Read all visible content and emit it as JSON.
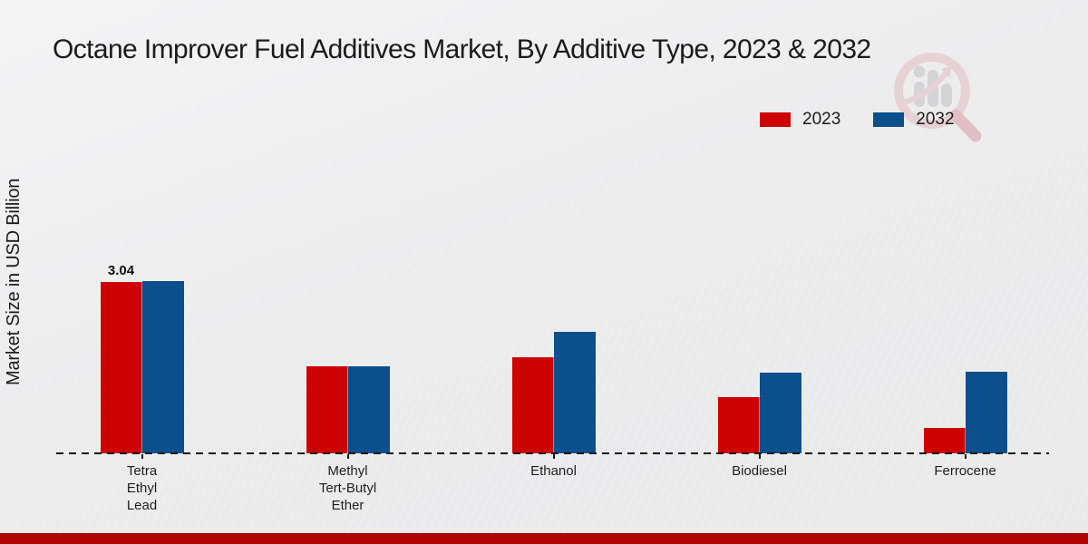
{
  "page": {
    "title": "Octane Improver Fuel Additives Market, By Additive Type, 2023 & 2032"
  },
  "legend": {
    "items": [
      {
        "label": "2023",
        "color": "#cc0302"
      },
      {
        "label": "2032",
        "color": "#0b4f8c"
      }
    ]
  },
  "watermark": {
    "icon": "market-research-magnifier-logo"
  },
  "footer": {
    "band_color": "#b30202"
  },
  "chart_data": {
    "type": "bar",
    "title": "Octane Improver Fuel Additives Market, By Additive Type, 2023 & 2032",
    "xlabel": "",
    "ylabel": "Market Size in USD Billion",
    "categories": [
      "Tetra Ethyl Lead",
      "Methyl Tert-Butyl Ether",
      "Ethanol",
      "Biodiesel",
      "Ferrocene"
    ],
    "category_display": [
      "Tetra\nEthyl\nLead",
      "Methyl\nTert-Butyl\nEther",
      "Ethanol",
      "Biodiesel",
      "Ferrocene"
    ],
    "series": [
      {
        "name": "2023",
        "color": "#cc0302",
        "values": [
          3.04,
          1.55,
          1.7,
          1.0,
          0.45
        ]
      },
      {
        "name": "2032",
        "color": "#0b4f8c",
        "values": [
          3.06,
          1.54,
          2.15,
          1.43,
          1.44
        ]
      }
    ],
    "data_labels": [
      {
        "series": "2023",
        "category": "Tetra Ethyl Lead",
        "text": "3.04"
      }
    ],
    "ylim": [
      0,
      3.5
    ],
    "grid": false,
    "axis_style": "dashed-baseline",
    "legend_position": "top-right"
  }
}
